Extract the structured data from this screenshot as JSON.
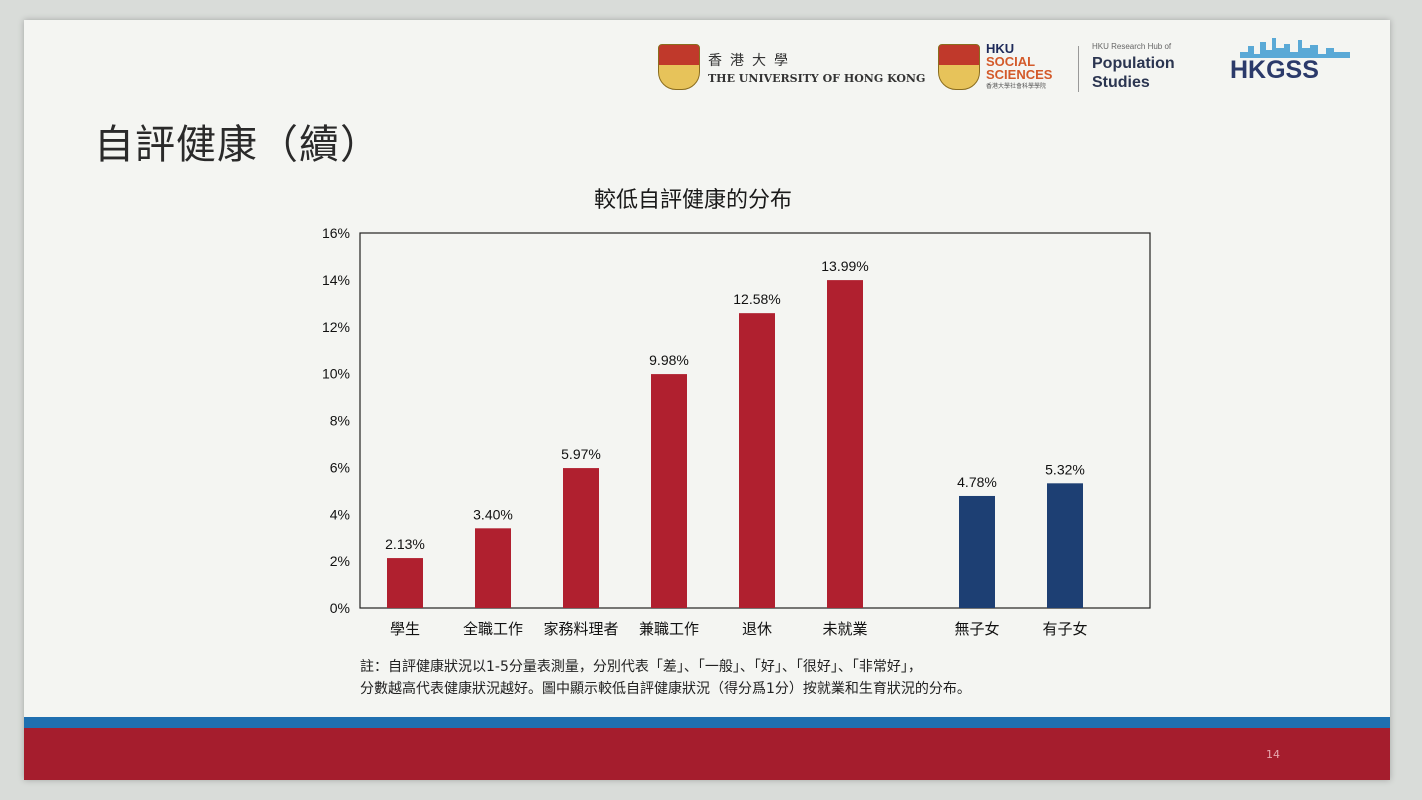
{
  "slide": {
    "title": "自評健康（續）",
    "page_number": "14",
    "note_line1": "註：自評健康狀況以1-5分量表測量，分別代表「差」、「一般」、「好」、「很好」、「非常好」，",
    "note_line2": "分數越高代表健康狀況越好。圖中顯示較低自評健康狀況（得分爲1分）按就業和生育狀況的分布。"
  },
  "logos": {
    "hku_cn": "香港大學",
    "hku_en": "THE UNIVERSITY OF HONG KONG",
    "hku_ss_line1": "HKU",
    "hku_ss_line2": "SOCIAL",
    "hku_ss_line3": "SCIENCES",
    "hku_ss_sub": "香港大學社會科學學院",
    "pop_hub_small": "HKU Research Hub of",
    "pop_line1": "Population",
    "pop_line2": "Studies",
    "hkgss": "HKGSS"
  },
  "colors": {
    "red_bar": "#b0202f",
    "blue_bar": "#1d3f73",
    "band_blue": "#1f6fb0",
    "band_red": "#a51d2d"
  },
  "chart_data": {
    "type": "bar",
    "title": "較低自評健康的分布",
    "categories": [
      "學生",
      "全職工作",
      "家務料理者",
      "兼職工作",
      "退休",
      "未就業",
      "無子女",
      "有子女"
    ],
    "values": [
      2.13,
      3.4,
      5.97,
      9.98,
      12.58,
      13.99,
      4.78,
      5.32
    ],
    "value_labels": [
      "2.13%",
      "3.40%",
      "5.97%",
      "9.98%",
      "12.58%",
      "13.99%",
      "4.78%",
      "5.32%"
    ],
    "groups": [
      "employment",
      "employment",
      "employment",
      "employment",
      "employment",
      "employment",
      "parenthood",
      "parenthood"
    ],
    "ylim": [
      0,
      16
    ],
    "yticks": [
      0,
      2,
      4,
      6,
      8,
      10,
      12,
      14,
      16
    ],
    "ytick_labels": [
      "0%",
      "2%",
      "4%",
      "6%",
      "8%",
      "10%",
      "12%",
      "14%",
      "16%"
    ],
    "grid": false,
    "legend": "none"
  }
}
